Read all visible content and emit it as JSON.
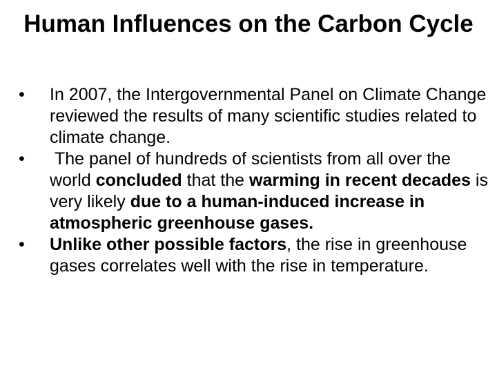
{
  "title": "Human Influences on the Carbon Cycle",
  "bullets": [
    {
      "runs": [
        {
          "text": "In 2007, the Intergovernmental Panel on Climate Change reviewed the results of many scientific studies related to climate change.",
          "bold": false
        }
      ]
    },
    {
      "runs": [
        {
          "text": " The panel of hundreds of scientists from all over the world ",
          "bold": false
        },
        {
          "text": "concluded",
          "bold": true
        },
        {
          "text": " that the ",
          "bold": false
        },
        {
          "text": "warming in recent decades",
          "bold": true
        },
        {
          "text": " is very likely ",
          "bold": false
        },
        {
          "text": "due to a human-induced increase in atmospheric greenhouse gases.",
          "bold": true
        }
      ]
    },
    {
      "runs": [
        {
          "text": "Unlike other possible factors",
          "bold": true
        },
        {
          "text": ", the rise in greenhouse gases correlates well with the rise in temperature.",
          "bold": false
        }
      ]
    }
  ]
}
